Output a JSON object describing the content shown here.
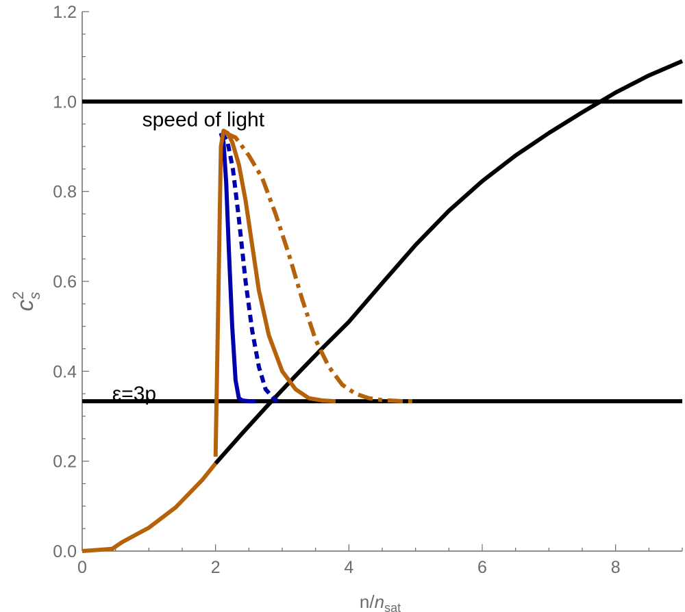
{
  "chart_data": {
    "type": "line",
    "xlabel_main": "n/",
    "xlabel_italic": "n",
    "xlabel_sub": "sat",
    "ylabel_main": "c",
    "ylabel_sup": "2",
    "ylabel_sub": "s",
    "xlim": [
      0,
      9
    ],
    "ylim": [
      0,
      1.2
    ],
    "xticks": [
      0,
      2,
      4,
      6,
      8
    ],
    "yticks": [
      0.0,
      0.2,
      0.4,
      0.6,
      0.8,
      1.0,
      1.2
    ],
    "grid": false,
    "annotations": [
      {
        "text": "speed of light",
        "x": 0.9,
        "y": 0.945
      },
      {
        "text": "ε=3p",
        "x": 0.45,
        "y": 0.335
      }
    ],
    "colors": {
      "black": "#000000",
      "blue": "#0000aa",
      "orange": "#b5620a",
      "axis": "#6b6b6b"
    },
    "reference_lines": [
      {
        "label": "speed of light",
        "y": 1.0,
        "style": "solid",
        "color": "#000000"
      },
      {
        "label": "ε=3p",
        "y": 0.3333,
        "style": "solid",
        "color": "#000000"
      }
    ],
    "series": [
      {
        "style": "solid",
        "color": "#000000",
        "x": [
          2.0,
          2.4,
          2.8,
          3.2,
          3.6,
          4.0,
          4.5,
          5.0,
          5.5,
          6.0,
          6.5,
          7.0,
          7.5,
          8.0,
          8.5,
          9.0
        ],
        "y": [
          0.195,
          0.262,
          0.327,
          0.39,
          0.451,
          0.51,
          0.596,
          0.681,
          0.757,
          0.823,
          0.88,
          0.93,
          0.976,
          1.02,
          1.058,
          1.09
        ]
      },
      {
        "style": "solid",
        "color": "#b5620a",
        "x": [
          0.0,
          0.45,
          0.6,
          1.0,
          1.4,
          1.8,
          2.0
        ],
        "y": [
          0.0,
          0.005,
          0.02,
          0.052,
          0.097,
          0.158,
          0.195
        ]
      },
      {
        "style": "solid",
        "color": "#0000aa",
        "x": [
          2.08,
          2.12,
          2.16,
          2.2,
          2.25,
          2.3,
          2.35,
          2.4,
          2.5,
          2.6
        ],
        "y": [
          0.93,
          0.91,
          0.82,
          0.67,
          0.5,
          0.38,
          0.34,
          0.335,
          0.3333,
          0.3333
        ]
      },
      {
        "style": "dashed",
        "color": "#0000aa",
        "x": [
          2.1,
          2.18,
          2.26,
          2.35,
          2.45,
          2.55,
          2.65,
          2.75,
          2.9,
          3.0
        ],
        "y": [
          0.93,
          0.91,
          0.85,
          0.74,
          0.6,
          0.49,
          0.41,
          0.36,
          0.335,
          0.3333
        ]
      },
      {
        "style": "solid",
        "color": "#b5620a",
        "x": [
          2.0,
          2.04,
          2.08,
          2.12,
          2.18,
          2.25,
          2.35,
          2.45,
          2.55,
          2.65,
          2.8,
          3.0,
          3.2,
          3.4,
          3.6,
          3.8
        ],
        "y": [
          0.21,
          0.55,
          0.9,
          0.935,
          0.93,
          0.91,
          0.86,
          0.78,
          0.68,
          0.58,
          0.48,
          0.4,
          0.36,
          0.34,
          0.335,
          0.3333
        ]
      },
      {
        "style": "dashdot",
        "color": "#b5620a",
        "x": [
          2.15,
          2.3,
          2.5,
          2.7,
          2.9,
          3.1,
          3.3,
          3.5,
          3.7,
          3.9,
          4.1,
          4.3,
          4.5,
          4.8,
          5.0
        ],
        "y": [
          0.93,
          0.92,
          0.88,
          0.83,
          0.75,
          0.66,
          0.56,
          0.47,
          0.41,
          0.37,
          0.35,
          0.34,
          0.336,
          0.3335,
          0.3333
        ]
      }
    ]
  }
}
